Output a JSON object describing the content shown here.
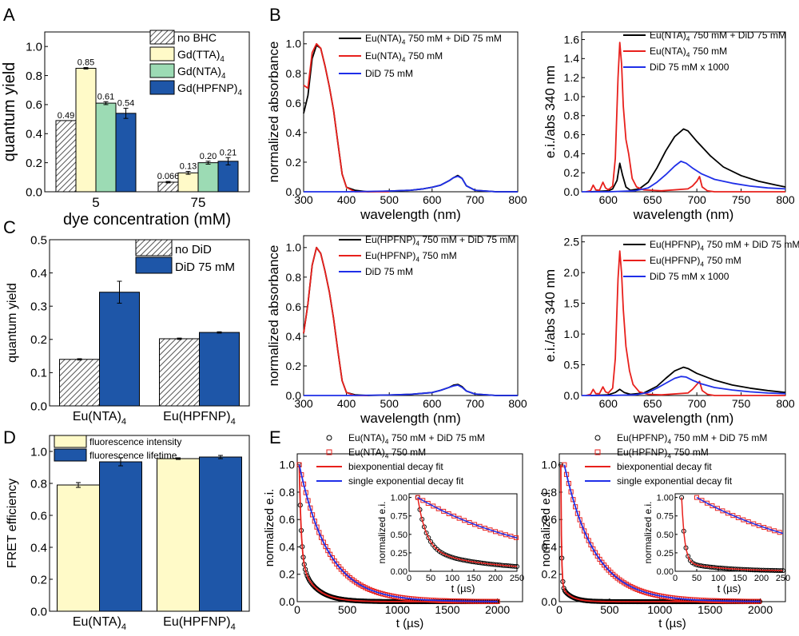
{
  "panel_letters": [
    "A",
    "B",
    "C",
    "D",
    "E"
  ],
  "colors": {
    "black": "#000000",
    "red": "#e8201c",
    "blue": "#1f2fe8",
    "gd_tta": "#fffac8",
    "gd_nta": "#9cdbb4",
    "gd_hpfnp": "#1e56a8",
    "hatch": "#555555"
  },
  "chart_data": [
    {
      "id": "A",
      "type": "bar",
      "xlabel": "dye concentration (mM)",
      "ylabel": "quantum yield",
      "ylim": [
        0,
        1.1
      ],
      "yticks": [
        "0.0",
        "0.2",
        "0.4",
        "0.6",
        "0.8",
        "1.0"
      ],
      "categories": [
        "5",
        "75"
      ],
      "legend": "top-right",
      "series": [
        {
          "name": "no BHC",
          "pattern": "hatch",
          "values": [
            0.49,
            0.066
          ],
          "err": [
            0.0,
            0.005
          ],
          "labels": [
            "0.49",
            "0.066"
          ]
        },
        {
          "name": "Gd(TTA)4",
          "color": "#fffac8",
          "values": [
            0.85,
            0.13
          ],
          "err": [
            0.005,
            0.01
          ],
          "labels": [
            "0.85",
            "0.13"
          ]
        },
        {
          "name": "Gd(NTA)4",
          "color": "#9cdbb4",
          "values": [
            0.61,
            0.2
          ],
          "err": [
            0.01,
            0.01
          ],
          "labels": [
            "0.61",
            "0.20"
          ]
        },
        {
          "name": "Gd(HPFNP)4",
          "color": "#1e56a8",
          "values": [
            0.54,
            0.21
          ],
          "err": [
            0.035,
            0.025
          ],
          "labels": [
            "0.54",
            "0.21"
          ]
        }
      ]
    },
    {
      "id": "B-abs-NTA",
      "type": "line",
      "xlabel": "wavelength (nm)",
      "ylabel": "normalized absorbance",
      "xlim": [
        300,
        800
      ],
      "ylim": [
        0,
        1.08
      ],
      "xticks": [
        "300",
        "400",
        "500",
        "600",
        "700",
        "800"
      ],
      "yticks": [
        "0.0",
        "0.2",
        "0.4",
        "0.6",
        "0.8",
        "1.0"
      ],
      "legend": "top-right",
      "series": [
        {
          "name": "Eu(NTA)4 750 mM + DiD 75 mM",
          "color": "#000000",
          "x": [
            300,
            310,
            320,
            330,
            340,
            350,
            360,
            370,
            380,
            390,
            400,
            420,
            450,
            500,
            550,
            580,
            600,
            620,
            640,
            650,
            660,
            670,
            680,
            700,
            750,
            800
          ],
          "y": [
            0.53,
            0.65,
            0.9,
            0.99,
            0.97,
            0.85,
            0.71,
            0.55,
            0.33,
            0.12,
            0.03,
            0.01,
            0.0,
            0.005,
            0.01,
            0.02,
            0.03,
            0.045,
            0.075,
            0.095,
            0.11,
            0.09,
            0.04,
            0.01,
            0.0,
            0.0
          ]
        },
        {
          "name": "Eu(NTA)4 750 mM",
          "color": "#e8201c",
          "x": [
            300,
            310,
            320,
            330,
            340,
            350,
            360,
            370,
            380,
            390,
            400,
            420,
            450,
            500
          ],
          "y": [
            0.72,
            0.7,
            0.94,
            1.0,
            0.97,
            0.85,
            0.71,
            0.55,
            0.33,
            0.12,
            0.03,
            0.0,
            0.0,
            0.0
          ]
        },
        {
          "name": "DiD 75 mM",
          "color": "#1f2fe8",
          "x": [
            300,
            400,
            500,
            550,
            580,
            600,
            620,
            640,
            650,
            660,
            670,
            680,
            700,
            750,
            800
          ],
          "y": [
            0.0,
            0.0,
            0.005,
            0.01,
            0.02,
            0.03,
            0.045,
            0.075,
            0.095,
            0.105,
            0.09,
            0.04,
            0.01,
            0.0,
            0.0
          ]
        }
      ]
    },
    {
      "id": "B-em-NTA",
      "type": "line",
      "xlabel": "wavelength (nm)",
      "ylabel": "e.i./abs 340 nm",
      "xlim": [
        570,
        800
      ],
      "ylim": [
        0,
        1.68
      ],
      "xticks": [
        "600",
        "650",
        "700",
        "750",
        "800"
      ],
      "yticks": [
        "0.0",
        "0.2",
        "0.4",
        "0.6",
        "0.8",
        "1.0",
        "1.2",
        "1.4",
        "1.6"
      ],
      "legend": "top-right",
      "series": [
        {
          "name": "Eu(NTA)4 750 mM + DiD 75 mM",
          "color": "#000000",
          "x": [
            580,
            590,
            600,
            605,
            610,
            613,
            616,
            620,
            625,
            635,
            645,
            655,
            665,
            675,
            685,
            690,
            700,
            715,
            730,
            750,
            770,
            790,
            800
          ],
          "y": [
            0.0,
            0.005,
            0.01,
            0.03,
            0.12,
            0.3,
            0.18,
            0.05,
            0.015,
            0.03,
            0.1,
            0.25,
            0.43,
            0.58,
            0.66,
            0.64,
            0.53,
            0.38,
            0.26,
            0.17,
            0.11,
            0.07,
            0.05
          ]
        },
        {
          "name": "Eu(NTA)4 750 mM",
          "color": "#e8201c",
          "x": [
            575,
            580,
            583,
            586,
            590,
            594,
            597,
            600,
            605,
            608,
            611,
            613,
            615,
            617,
            620,
            623,
            627,
            632,
            640,
            660,
            690,
            695,
            700,
            703,
            706,
            712,
            720,
            750,
            800
          ],
          "y": [
            0.0,
            0.01,
            0.07,
            0.02,
            0.015,
            0.1,
            0.04,
            0.02,
            0.06,
            0.35,
            1.2,
            1.57,
            1.35,
            0.9,
            0.55,
            0.4,
            0.14,
            0.05,
            0.02,
            0.01,
            0.03,
            0.06,
            0.11,
            0.16,
            0.05,
            0.01,
            0.0,
            0.0,
            0.0
          ]
        },
        {
          "name": "DiD 75 mM x 1000",
          "color": "#1f2fe8",
          "x": [
            570,
            600,
            630,
            645,
            655,
            665,
            675,
            682,
            688,
            695,
            705,
            720,
            740,
            760,
            780,
            800
          ],
          "y": [
            0.0,
            0.0,
            0.01,
            0.04,
            0.1,
            0.18,
            0.27,
            0.32,
            0.3,
            0.25,
            0.19,
            0.13,
            0.09,
            0.06,
            0.04,
            0.03
          ]
        }
      ]
    },
    {
      "id": "C",
      "type": "bar",
      "ylabel": "quantum yield",
      "ylim": [
        0,
        0.5
      ],
      "yticks": [
        "0.0",
        "0.1",
        "0.2",
        "0.3",
        "0.4",
        "0.5"
      ],
      "categories": [
        "Eu(NTA)4",
        "Eu(HPFNP)4"
      ],
      "legend": "top-right",
      "series": [
        {
          "name": "no DiD",
          "pattern": "hatch",
          "values": [
            0.14,
            0.202
          ],
          "err": [
            0.002,
            0.002
          ]
        },
        {
          "name": "DiD 75 mM",
          "color": "#1e56a8",
          "values": [
            0.342,
            0.221
          ],
          "err": [
            0.033,
            0.002
          ]
        }
      ]
    },
    {
      "id": "B-abs-HPFNP",
      "type": "line",
      "xlabel": "wavelength (nm)",
      "ylabel": "normalized absorbance",
      "xlim": [
        300,
        800
      ],
      "ylim": [
        0,
        1.08
      ],
      "xticks": [
        "300",
        "400",
        "500",
        "600",
        "700",
        "800"
      ],
      "yticks": [
        "0.0",
        "0.2",
        "0.4",
        "0.6",
        "0.8",
        "1.0"
      ],
      "legend": "top-right",
      "series": [
        {
          "name": "Eu(HPFNP)4 750 mM + DiD 75 mM",
          "color": "#000000",
          "x": [
            300,
            310,
            320,
            330,
            340,
            350,
            360,
            370,
            380,
            390,
            400,
            420,
            450,
            500,
            550,
            600,
            620,
            640,
            650,
            660,
            670,
            680,
            700,
            750,
            800
          ],
          "y": [
            0.42,
            0.62,
            0.88,
            1.0,
            0.96,
            0.84,
            0.7,
            0.52,
            0.3,
            0.1,
            0.02,
            0.005,
            0.0,
            0.003,
            0.008,
            0.02,
            0.035,
            0.055,
            0.07,
            0.075,
            0.06,
            0.03,
            0.01,
            0.0,
            0.0
          ]
        },
        {
          "name": "Eu(HPFNP)4 750 mM",
          "color": "#e8201c",
          "x": [
            300,
            310,
            320,
            330,
            340,
            350,
            360,
            370,
            380,
            390,
            400,
            420,
            450
          ],
          "y": [
            0.42,
            0.62,
            0.88,
            1.0,
            0.96,
            0.84,
            0.7,
            0.52,
            0.3,
            0.1,
            0.02,
            0.0,
            0.0
          ]
        },
        {
          "name": "DiD 75 mM",
          "color": "#1f2fe8",
          "x": [
            300,
            400,
            500,
            550,
            600,
            620,
            640,
            650,
            660,
            670,
            680,
            700,
            750,
            800
          ],
          "y": [
            0.0,
            0.0,
            0.003,
            0.008,
            0.02,
            0.035,
            0.055,
            0.065,
            0.07,
            0.055,
            0.03,
            0.01,
            0.0,
            0.0
          ]
        }
      ]
    },
    {
      "id": "B-em-HPFNP",
      "type": "line",
      "xlabel": "wavelength (nm)",
      "ylabel": "e.i./abs 340 nm",
      "xlim": [
        570,
        800
      ],
      "ylim": [
        0,
        2.6
      ],
      "xticks": [
        "600",
        "650",
        "700",
        "750",
        "800"
      ],
      "yticks": [
        "0.0",
        "0.5",
        "1.0",
        "1.5",
        "2.0",
        "2.5"
      ],
      "legend": "top-right",
      "series": [
        {
          "name": "Eu(HPFNP)4 750 mM + DiD 75 mM",
          "color": "#000000",
          "x": [
            580,
            600,
            608,
            613,
            618,
            625,
            640,
            655,
            665,
            675,
            685,
            690,
            700,
            720,
            740,
            760,
            780,
            800
          ],
          "y": [
            0.0,
            0.01,
            0.05,
            0.1,
            0.05,
            0.02,
            0.04,
            0.15,
            0.28,
            0.4,
            0.46,
            0.44,
            0.36,
            0.25,
            0.17,
            0.12,
            0.08,
            0.05
          ]
        },
        {
          "name": "Eu(HPFNP)4 750 mM",
          "color": "#e8201c",
          "x": [
            575,
            580,
            583,
            586,
            590,
            594,
            597,
            600,
            605,
            608,
            611,
            613,
            615,
            617,
            620,
            624,
            628,
            635,
            645,
            660,
            690,
            695,
            700,
            703,
            706,
            712,
            720,
            750,
            800
          ],
          "y": [
            0.0,
            0.02,
            0.1,
            0.03,
            0.03,
            0.14,
            0.06,
            0.04,
            0.12,
            0.6,
            1.9,
            2.35,
            2.0,
            1.4,
            0.8,
            0.4,
            0.18,
            0.06,
            0.02,
            0.01,
            0.04,
            0.1,
            0.18,
            0.23,
            0.08,
            0.02,
            0.0,
            0.0,
            0.0
          ]
        },
        {
          "name": "DiD 75 mM x 1000",
          "color": "#1f2fe8",
          "x": [
            570,
            600,
            630,
            645,
            655,
            665,
            675,
            682,
            688,
            695,
            705,
            720,
            740,
            760,
            780,
            800
          ],
          "y": [
            0.0,
            0.0,
            0.01,
            0.05,
            0.12,
            0.2,
            0.28,
            0.31,
            0.3,
            0.25,
            0.19,
            0.13,
            0.09,
            0.06,
            0.04,
            0.03
          ]
        }
      ]
    },
    {
      "id": "D",
      "type": "bar",
      "ylabel": "FRET efficiency",
      "ylim": [
        0,
        1.1
      ],
      "yticks": [
        "0.0",
        "0.2",
        "0.4",
        "0.6",
        "0.8",
        "1.0"
      ],
      "categories": [
        "Eu(NTA)4",
        "Eu(HPFNP)4"
      ],
      "legend": "top-left",
      "series": [
        {
          "name": "fluorescence intensity",
          "color": "#fffac8",
          "values": [
            0.79,
            0.955
          ],
          "err": [
            0.015,
            0.005
          ]
        },
        {
          "name": "fluorescence lifetime",
          "color": "#1e56a8",
          "values": [
            0.935,
            0.965
          ],
          "err": [
            0.025,
            0.01
          ]
        }
      ]
    },
    {
      "id": "E-NTA",
      "type": "scatter",
      "xlabel": "t (µs)",
      "ylabel": "normalized e.i.",
      "xlim": [
        0,
        2250
      ],
      "ylim": [
        0,
        1.08
      ],
      "xticks": [
        "0",
        "500",
        "1000",
        "1500",
        "2000"
      ],
      "yticks": [
        "0.0",
        "0.2",
        "0.4",
        "0.6",
        "0.8",
        "1.0"
      ],
      "legend": "top-right",
      "series": [
        {
          "name": "Eu(NTA)4 750 mM + DiD 75 mM",
          "marker": "circle",
          "color": "#000000",
          "t0": 20,
          "a1": 0.7,
          "tau1": 20,
          "a2": 0.3,
          "tau2": 150,
          "tmax": 2000
        },
        {
          "name": "Eu(NTA)4 750 mM",
          "marker": "square",
          "color": "#e8201c",
          "t0": 20,
          "a1": 1.0,
          "tau1": 290,
          "a2": 0.0,
          "tau2": 1,
          "tmax": 2000
        },
        {
          "name": "biexponential decay fit",
          "line": true,
          "color": "#e8201c"
        },
        {
          "name": "single exponential decay fit",
          "line": true,
          "color": "#1f2fe8"
        }
      ],
      "inset": {
        "xlabel": "t (µs)",
        "ylabel": "normalized e.i.",
        "xlim": [
          0,
          250
        ],
        "ylim": [
          0,
          1.05
        ],
        "xticks": [
          "0",
          "50",
          "100",
          "150",
          "200",
          "250"
        ],
        "yticks": [
          "0.00",
          "0.25",
          "0.50",
          "0.75",
          "1.00"
        ]
      }
    },
    {
      "id": "E-HPFNP",
      "type": "scatter",
      "xlabel": "t (µs)",
      "ylabel": "normalized e.i.",
      "xlim": [
        0,
        2250
      ],
      "ylim": [
        0,
        1.08
      ],
      "xticks": [
        "0",
        "500",
        "1000",
        "1500",
        "2000"
      ],
      "yticks": [
        "0.0",
        "0.2",
        "0.4",
        "0.6",
        "0.8",
        "1.0"
      ],
      "legend": "top-right",
      "series": [
        {
          "name": "Eu(HPFNP)4 750 mM + DiD 75 mM",
          "marker": "circle",
          "color": "#000000",
          "t0": 15,
          "a1": 0.88,
          "tau1": 7,
          "a2": 0.12,
          "tau2": 90,
          "tmax": 2000
        },
        {
          "name": "Eu(HPFNP)4 750 mM",
          "marker": "square",
          "color": "#e8201c",
          "t0": 50,
          "a1": 1.0,
          "tau1": 300,
          "a2": 0.0,
          "tau2": 1,
          "tmax": 2000
        },
        {
          "name": "biexponential decay fit",
          "line": true,
          "color": "#e8201c"
        },
        {
          "name": "single exponential decay fit",
          "line": true,
          "color": "#1f2fe8"
        }
      ],
      "inset": {
        "xlabel": "t (µs)",
        "ylabel": "normalized e.i.",
        "xlim": [
          0,
          250
        ],
        "ylim": [
          0,
          1.05
        ],
        "xticks": [
          "0",
          "50",
          "100",
          "150",
          "200",
          "250"
        ],
        "yticks": [
          "0.00",
          "0.25",
          "0.50",
          "0.75",
          "1.00"
        ]
      }
    }
  ]
}
